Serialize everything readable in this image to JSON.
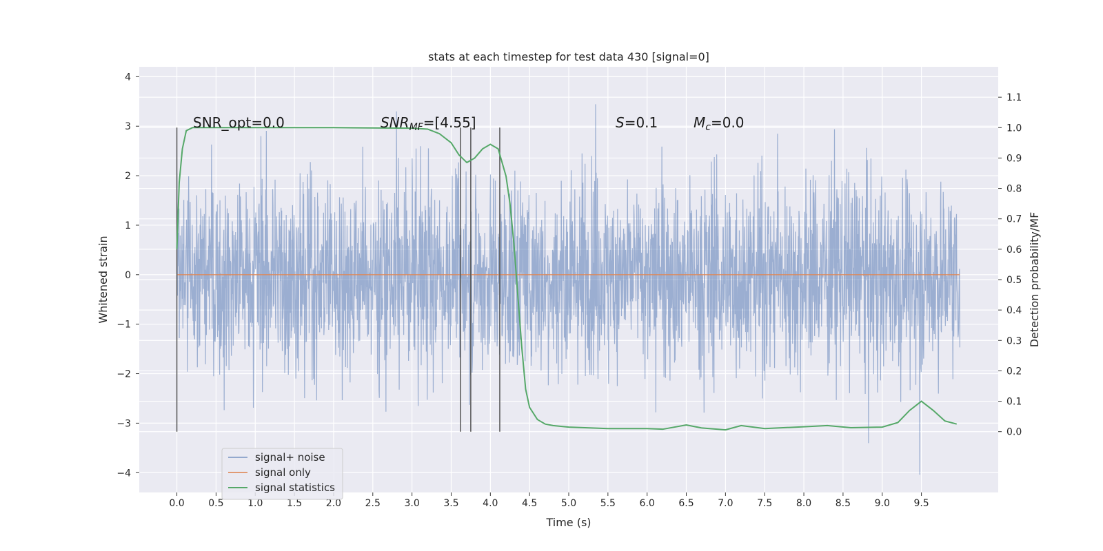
{
  "chart_data": {
    "type": "line",
    "title": "stats at each timestep for test data 430 [signal=0]",
    "xlabel": "Time (s)",
    "ylabel": "Whitened strain",
    "ylabel_right": "Detection probability/MF",
    "xlim": [
      -0.48,
      10.48
    ],
    "ylim": [
      -4.4,
      4.2
    ],
    "ylim_right": [
      -0.2,
      1.2
    ],
    "x_ticks": [
      "0.0",
      "0.5",
      "1.0",
      "1.5",
      "2.0",
      "2.5",
      "3.0",
      "3.5",
      "4.0",
      "4.5",
      "5.0",
      "5.5",
      "6.0",
      "6.5",
      "7.0",
      "7.5",
      "8.0",
      "8.5",
      "9.0",
      "9.5"
    ],
    "y_ticks": [
      "4",
      "3",
      "2",
      "1",
      "0",
      "−1",
      "−2",
      "−3",
      "−4"
    ],
    "y_ticks_right": [
      "1.1",
      "1.0",
      "0.9",
      "0.8",
      "0.7",
      "0.6",
      "0.5",
      "0.4",
      "0.3",
      "0.2",
      "0.1",
      "0.0"
    ],
    "grid": true,
    "legend_position": "lower-left",
    "series": [
      {
        "name": "signal+ noise",
        "color": "#4c72b0",
        "axis": "left",
        "kind": "noise",
        "x_range": [
          0.0,
          9.99
        ],
        "amplitude_range": [
          -4.05,
          3.7
        ]
      },
      {
        "name": "signal only",
        "color": "#dd8452",
        "axis": "left",
        "kind": "constant",
        "x_range": [
          0.0,
          9.99
        ],
        "value": 0.0
      },
      {
        "name": "signal statistics",
        "color": "#55a868",
        "axis": "right",
        "x": [
          0.0,
          0.03,
          0.07,
          0.12,
          0.2,
          0.3,
          0.5,
          1.0,
          1.5,
          2.0,
          2.5,
          3.0,
          3.2,
          3.35,
          3.5,
          3.6,
          3.7,
          3.8,
          3.9,
          4.0,
          4.1,
          4.2,
          4.25,
          4.3,
          4.35,
          4.4,
          4.45,
          4.5,
          4.6,
          4.7,
          4.8,
          5.0,
          5.5,
          6.0,
          6.2,
          6.5,
          6.7,
          7.0,
          7.2,
          7.5,
          8.0,
          8.3,
          8.6,
          9.0,
          9.2,
          9.35,
          9.5,
          9.65,
          9.8,
          9.95
        ],
        "values": [
          0.6,
          0.82,
          0.93,
          0.99,
          1.0,
          1.0,
          1.0,
          1.0,
          1.0,
          1.0,
          0.999,
          0.998,
          0.995,
          0.98,
          0.95,
          0.91,
          0.885,
          0.9,
          0.93,
          0.945,
          0.93,
          0.84,
          0.75,
          0.62,
          0.45,
          0.28,
          0.14,
          0.08,
          0.04,
          0.025,
          0.02,
          0.015,
          0.01,
          0.01,
          0.008,
          0.022,
          0.012,
          0.006,
          0.02,
          0.01,
          0.016,
          0.02,
          0.013,
          0.015,
          0.03,
          0.07,
          0.1,
          0.07,
          0.035,
          0.025
        ]
      }
    ],
    "vlines": [
      0.0,
      3.62,
      3.75,
      4.12
    ],
    "annotations": [
      {
        "text": "SNR_opt=0.0",
        "x": 0.2
      },
      {
        "text_parts": [
          "SNR",
          "MF",
          "=[4.55]"
        ],
        "x": 2.6
      },
      {
        "text_parts": [
          "S",
          "=0.1"
        ],
        "x": 5.6
      },
      {
        "text_parts": [
          "M",
          "c",
          "=0.0"
        ],
        "x": 6.6
      }
    ]
  },
  "colors": {
    "plot_background": "#eaeaf2",
    "grid": "#ffffff",
    "vline": "#555555"
  }
}
